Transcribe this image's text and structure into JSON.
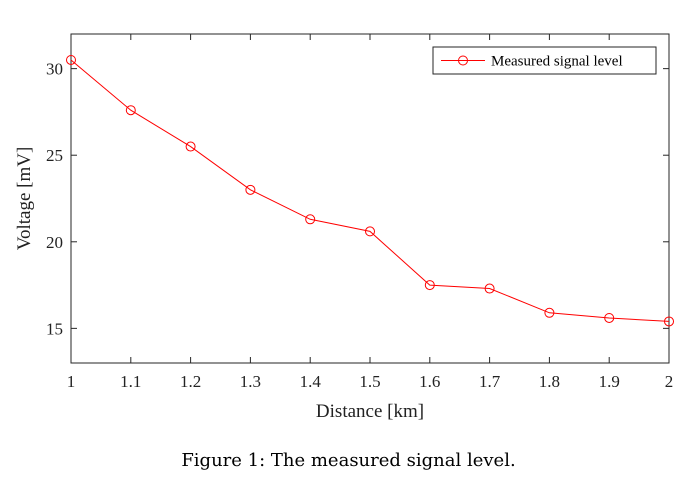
{
  "caption": "Figure 1:  The measured signal level.",
  "chart_data": {
    "type": "line",
    "title": "",
    "xlabel": "Distance [km]",
    "ylabel": "Voltage [mV]",
    "xlim": [
      1,
      2
    ],
    "ylim": [
      13,
      32
    ],
    "x_ticks": [
      1,
      1.1,
      1.2,
      1.3,
      1.4,
      1.5,
      1.6,
      1.7,
      1.8,
      1.9,
      2
    ],
    "x_tick_labels": [
      "1",
      "1.1",
      "1.2",
      "1.3",
      "1.4",
      "1.5",
      "1.6",
      "1.7",
      "1.8",
      "1.9",
      "2"
    ],
    "y_ticks": [
      15,
      20,
      25,
      30
    ],
    "y_tick_labels": [
      "15",
      "20",
      "25",
      "30"
    ],
    "grid": false,
    "legend_position": "top-right",
    "series": [
      {
        "name": "Measured signal level",
        "color": "#ff0000",
        "marker": "circle",
        "x": [
          1,
          1.1,
          1.2,
          1.3,
          1.4,
          1.5,
          1.6,
          1.7,
          1.8,
          1.9,
          2
        ],
        "y": [
          30.5,
          27.6,
          25.5,
          23.0,
          21.3,
          20.6,
          17.5,
          17.3,
          15.9,
          15.6,
          15.4
        ]
      }
    ]
  }
}
